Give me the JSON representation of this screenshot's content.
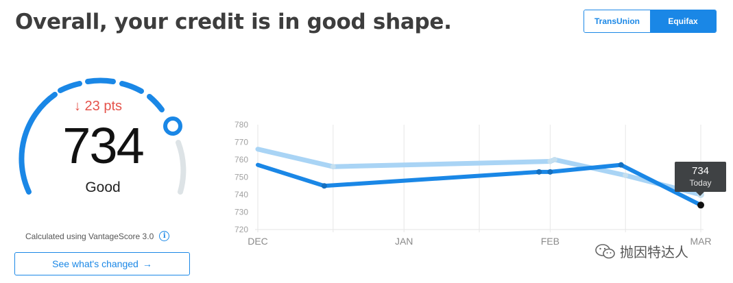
{
  "header": {
    "title": "Overall, your credit is in good shape."
  },
  "bureau_toggle": {
    "options": [
      "TransUnion",
      "Equifax"
    ],
    "selected": "Equifax"
  },
  "gauge": {
    "delta": "↓ 23 pts",
    "score": "734",
    "rating": "Good",
    "min": 300,
    "max": 850,
    "value": 734,
    "accent": "#1a87e6",
    "track_color": "#dde3e6",
    "delta_color": "#e5534b"
  },
  "footnote": {
    "text": "Calculated using VantageScore 3.0",
    "icon": "info-icon"
  },
  "cta": {
    "label": "See what's changed",
    "icon": "arrow-right-icon"
  },
  "chart_data": {
    "type": "line",
    "title": "",
    "x_ticks": [
      "DEC",
      "JAN",
      "FEB",
      "MAR"
    ],
    "y_ticks": [
      780,
      770,
      760,
      750,
      740,
      730,
      720
    ],
    "ylim": [
      720,
      780
    ],
    "grid": "vertical",
    "series": [
      {
        "color": "#a9d4f5",
        "points": [
          {
            "x": 0,
            "y": 766
          },
          {
            "x": 0.17,
            "y": 756
          },
          {
            "x": 0.66,
            "y": 759
          },
          {
            "x": 0.67,
            "y": 760
          },
          {
            "x": 0.83,
            "y": 751
          },
          {
            "x": 1.0,
            "y": 740
          }
        ]
      },
      {
        "color": "#1a87e6",
        "points": [
          {
            "x": 0,
            "y": 757
          },
          {
            "x": 0.15,
            "y": 745
          },
          {
            "x": 0.635,
            "y": 753
          },
          {
            "x": 0.66,
            "y": 753
          },
          {
            "x": 0.82,
            "y": 757
          },
          {
            "x": 1.0,
            "y": 734
          }
        ]
      }
    ],
    "tooltip": {
      "value": "734",
      "label": "Today"
    }
  },
  "watermark": {
    "text": "抛因特达人",
    "icon": "wechat-icon"
  }
}
